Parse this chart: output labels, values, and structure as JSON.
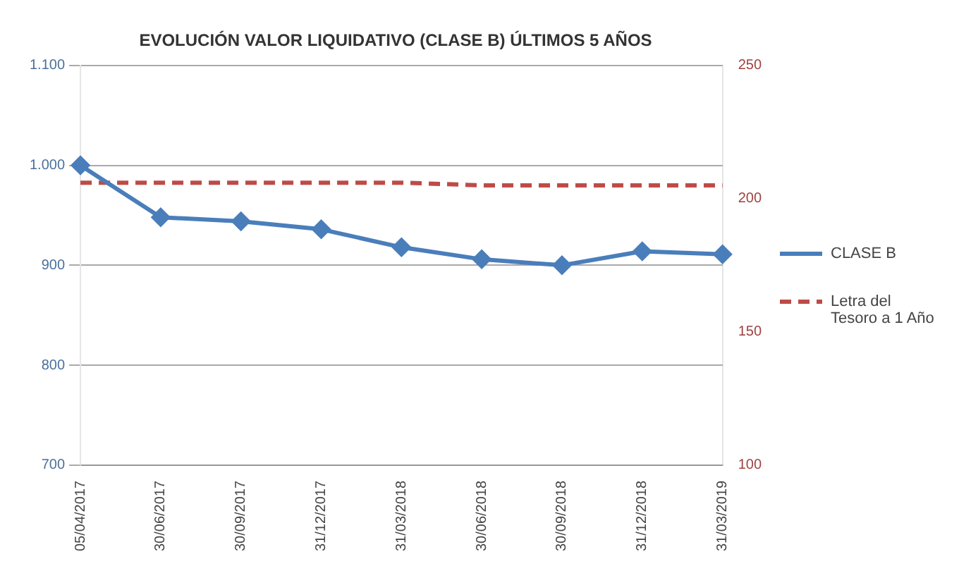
{
  "chart_data": {
    "type": "line",
    "title": "EVOLUCIÓN VALOR LIQUIDATIVO (CLASE B) ÚLTIMOS 5 AÑOS",
    "categories": [
      "05/04/2017",
      "30/06/2017",
      "30/09/2017",
      "31/12/2017",
      "31/03/2018",
      "30/06/2018",
      "30/09/2018",
      "31/12/2018",
      "31/03/2019"
    ],
    "series": [
      {
        "name": "CLASE B",
        "color": "#4a7ebb",
        "values": [
          1000,
          948,
          944,
          936,
          918,
          906,
          900,
          914,
          911
        ],
        "marker": "diamond",
        "line_style": "solid"
      },
      {
        "name": "Letra del Tesoro a 1 Año",
        "color": "#be4b48",
        "axis": "y2",
        "values": [
          206,
          206,
          206,
          206,
          206,
          205,
          205,
          205,
          205
        ],
        "marker": "none",
        "line_style": "dashed"
      }
    ],
    "ylim": [
      700,
      1100
    ],
    "yticks": [
      {
        "value": 700,
        "label": "700"
      },
      {
        "value": 800,
        "label": "800"
      },
      {
        "value": 900,
        "label": "900"
      },
      {
        "value": 1000,
        "label": "1.000"
      },
      {
        "value": 1100,
        "label": "1.100"
      }
    ],
    "y2lim": [
      100,
      250
    ],
    "y2ticks": [
      100,
      150,
      200,
      250
    ],
    "grid": "y",
    "legend": "right"
  }
}
